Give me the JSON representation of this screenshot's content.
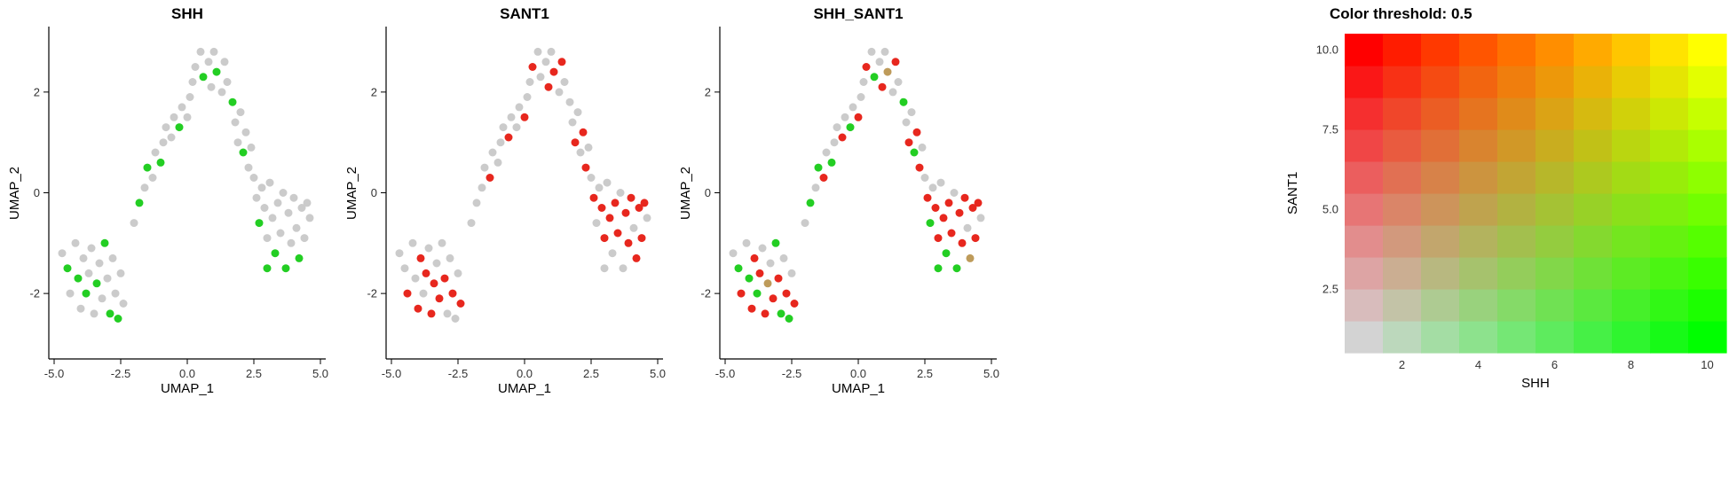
{
  "colors": {
    "negative_gray": "#CBCBCB",
    "positive_green": "#23CE23",
    "positive_red": "#E7271E",
    "double_positive": "#BE9B5A",
    "axis_line": "#000000",
    "tick_text": "#333333",
    "background": "#FFFFFF"
  },
  "chart_data": {
    "type": "scatter",
    "panels": [
      {
        "title": "SHH"
      },
      {
        "title": "SANT1"
      },
      {
        "title": "SHH_SANT1"
      }
    ],
    "scatter_axes": {
      "xlabel": "UMAP_1",
      "ylabel": "UMAP_2",
      "x_ticks": [
        "-5.0",
        "-2.5",
        "0.0",
        "2.5",
        "5.0"
      ],
      "x_tick_values": [
        -5.0,
        -2.5,
        0.0,
        2.5,
        5.0
      ],
      "y_ticks": [
        "-2",
        "0",
        "2"
      ],
      "y_tick_values": [
        -2,
        0,
        2
      ],
      "xlim": [
        -5.2,
        5.2
      ],
      "ylim": [
        -3.3,
        3.3
      ],
      "grid": false
    },
    "points_format": [
      "UMAP_1",
      "UMAP_2",
      "SHH_positive",
      "SANT1_positive"
    ],
    "points": [
      [
        -4.7,
        -1.2,
        0,
        0
      ],
      [
        -4.5,
        -1.5,
        1,
        0
      ],
      [
        -4.4,
        -2.0,
        0,
        1
      ],
      [
        -4.2,
        -1.0,
        0,
        0
      ],
      [
        -4.1,
        -1.7,
        1,
        0
      ],
      [
        -4.0,
        -2.3,
        0,
        1
      ],
      [
        -3.9,
        -1.3,
        0,
        1
      ],
      [
        -3.8,
        -2.0,
        1,
        0
      ],
      [
        -3.7,
        -1.6,
        0,
        1
      ],
      [
        -3.6,
        -1.1,
        0,
        0
      ],
      [
        -3.5,
        -2.4,
        0,
        1
      ],
      [
        -3.4,
        -1.8,
        1,
        1
      ],
      [
        -3.3,
        -1.4,
        0,
        0
      ],
      [
        -3.2,
        -2.1,
        0,
        1
      ],
      [
        -3.1,
        -1.0,
        1,
        0
      ],
      [
        -3.0,
        -1.7,
        0,
        1
      ],
      [
        -2.9,
        -2.4,
        1,
        0
      ],
      [
        -2.8,
        -1.3,
        0,
        0
      ],
      [
        -2.7,
        -2.0,
        0,
        1
      ],
      [
        -2.6,
        -2.5,
        1,
        0
      ],
      [
        -2.5,
        -1.6,
        0,
        0
      ],
      [
        -2.4,
        -2.2,
        0,
        1
      ],
      [
        -2.0,
        -0.6,
        0,
        0
      ],
      [
        -1.8,
        -0.2,
        1,
        0
      ],
      [
        -1.6,
        0.1,
        0,
        0
      ],
      [
        -1.5,
        0.5,
        1,
        0
      ],
      [
        -1.3,
        0.3,
        0,
        1
      ],
      [
        -1.2,
        0.8,
        0,
        0
      ],
      [
        -1.0,
        0.6,
        1,
        0
      ],
      [
        -0.9,
        1.0,
        0,
        0
      ],
      [
        -0.8,
        1.3,
        0,
        0
      ],
      [
        -0.6,
        1.1,
        0,
        1
      ],
      [
        -0.5,
        1.5,
        0,
        0
      ],
      [
        -0.3,
        1.3,
        1,
        0
      ],
      [
        -0.2,
        1.7,
        0,
        0
      ],
      [
        0.0,
        1.5,
        0,
        1
      ],
      [
        0.1,
        1.9,
        0,
        0
      ],
      [
        0.2,
        2.2,
        0,
        0
      ],
      [
        0.3,
        2.5,
        0,
        1
      ],
      [
        0.5,
        2.8,
        0,
        0
      ],
      [
        0.6,
        2.3,
        1,
        0
      ],
      [
        0.8,
        2.6,
        0,
        0
      ],
      [
        0.9,
        2.1,
        0,
        1
      ],
      [
        1.0,
        2.8,
        0,
        0
      ],
      [
        1.1,
        2.4,
        1,
        1
      ],
      [
        1.3,
        2.0,
        0,
        0
      ],
      [
        1.4,
        2.6,
        0,
        1
      ],
      [
        1.5,
        2.2,
        0,
        0
      ],
      [
        1.7,
        1.8,
        1,
        0
      ],
      [
        1.8,
        1.4,
        0,
        0
      ],
      [
        1.9,
        1.0,
        0,
        1
      ],
      [
        2.0,
        1.6,
        0,
        0
      ],
      [
        2.1,
        0.8,
        1,
        0
      ],
      [
        2.2,
        1.2,
        0,
        1
      ],
      [
        2.4,
        0.9,
        0,
        0
      ],
      [
        2.3,
        0.5,
        0,
        1
      ],
      [
        2.5,
        0.3,
        0,
        0
      ],
      [
        2.6,
        -0.1,
        0,
        1
      ],
      [
        2.7,
        -0.6,
        1,
        0
      ],
      [
        2.8,
        0.1,
        0,
        0
      ],
      [
        2.9,
        -0.3,
        0,
        1
      ],
      [
        3.0,
        -0.9,
        0,
        1
      ],
      [
        3.1,
        0.2,
        0,
        0
      ],
      [
        3.2,
        -0.5,
        0,
        1
      ],
      [
        3.3,
        -1.2,
        1,
        0
      ],
      [
        3.4,
        -0.2,
        0,
        1
      ],
      [
        3.5,
        -0.8,
        0,
        1
      ],
      [
        3.6,
        0.0,
        0,
        0
      ],
      [
        3.7,
        -1.5,
        1,
        0
      ],
      [
        3.8,
        -0.4,
        0,
        1
      ],
      [
        3.9,
        -1.0,
        0,
        1
      ],
      [
        4.0,
        -0.1,
        0,
        1
      ],
      [
        4.1,
        -0.7,
        0,
        0
      ],
      [
        4.2,
        -1.3,
        1,
        1
      ],
      [
        4.3,
        -0.3,
        0,
        1
      ],
      [
        4.4,
        -0.9,
        0,
        1
      ],
      [
        4.5,
        -0.2,
        0,
        1
      ],
      [
        4.6,
        -0.5,
        0,
        0
      ],
      [
        3.0,
        -1.5,
        1,
        0
      ]
    ],
    "legend": {
      "type": "heatmap",
      "title": "Color threshold: 0.5",
      "xlabel": "SHH",
      "ylabel": "SANT1",
      "x_ticks": [
        "2",
        "4",
        "6",
        "8",
        "10"
      ],
      "x_tick_values": [
        2,
        4,
        6,
        8,
        10
      ],
      "y_ticks": [
        "2.5",
        "5.0",
        "7.5",
        "10.0"
      ],
      "y_tick_values": [
        2.5,
        5.0,
        7.5,
        10.0
      ],
      "grid_size": 10,
      "value_range": [
        1,
        10
      ],
      "corner_colors": {
        "bottom_left": "#D3D3D3",
        "bottom_right": "#00FF00",
        "top_left": "#FF0000",
        "top_right": "#FFFF00"
      }
    }
  }
}
